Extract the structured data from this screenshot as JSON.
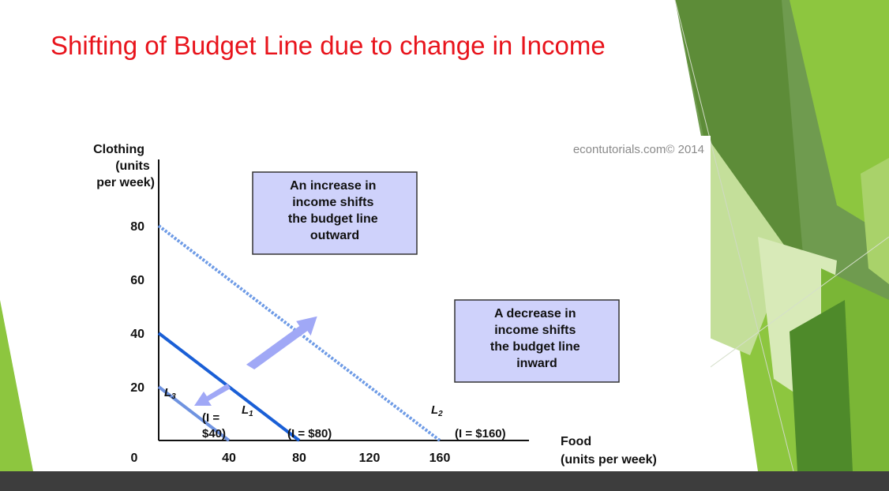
{
  "slide": {
    "title": "Shifting of Budget Line due to change in Income"
  },
  "theme": {
    "title_color": "#e8141c",
    "accent_green": "#8dc63f",
    "dark_green": "#4e8a2a",
    "bottom_bar": "#3d3d3d"
  },
  "chart_data": {
    "type": "line",
    "title": "",
    "credit": "econtutorials.com© 2014",
    "ylabel": [
      "Clothing",
      "(units",
      "per week)"
    ],
    "xlabel": [
      "Food",
      "(units per week)"
    ],
    "x_ticks": [
      "0",
      "40",
      "80",
      "120",
      "160"
    ],
    "y_ticks": [
      "80",
      "60",
      "40",
      "20"
    ],
    "xlim": [
      0,
      180
    ],
    "ylim": [
      0,
      80
    ],
    "series": [
      {
        "name": "L3",
        "sub": "3",
        "income_label": [
          "(I =",
          "$40)"
        ],
        "x": [
          0,
          40
        ],
        "y": [
          20,
          0
        ],
        "color": "#6f93e0",
        "style": "solid"
      },
      {
        "name": "L1",
        "sub": "1",
        "income_label": [
          "(I = $80)"
        ],
        "x": [
          0,
          80
        ],
        "y": [
          40,
          0
        ],
        "color": "#1a5fd6",
        "style": "solid"
      },
      {
        "name": "L2",
        "sub": "2",
        "income_label": [
          "(I = $160)"
        ],
        "x": [
          0,
          160
        ],
        "y": [
          80,
          0
        ],
        "color": "#6e9be6",
        "style": "dotted"
      }
    ],
    "annotations": [
      {
        "text": [
          "An increase in",
          "income shifts",
          "the budget line",
          "outward"
        ]
      },
      {
        "text": [
          "A decrease in",
          "income shifts",
          "the budget line",
          "inward"
        ]
      }
    ],
    "arrow_color": "#a0a8f6",
    "box_fill": "#cfd2fb",
    "grid": false
  }
}
